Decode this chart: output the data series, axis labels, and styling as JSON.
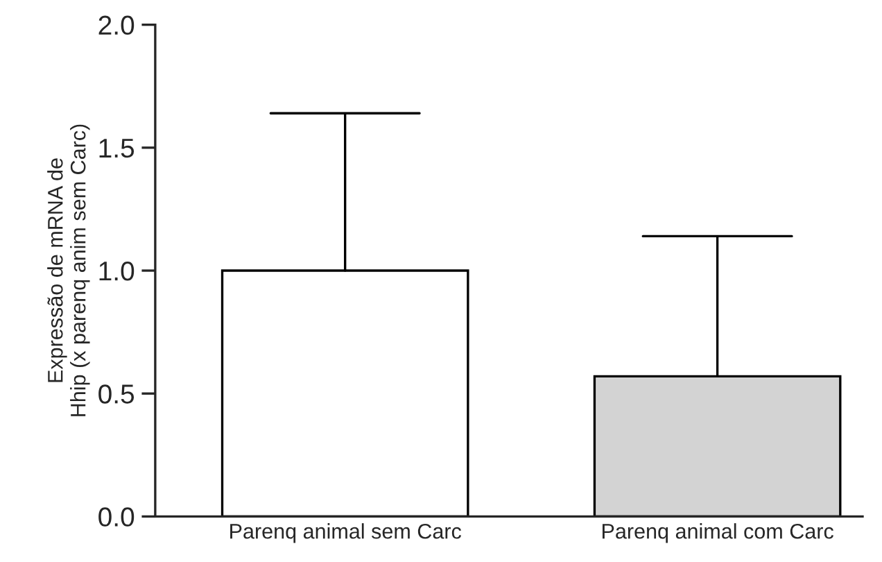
{
  "chart_data": {
    "type": "bar",
    "ylabel": "Expressão de mRNA de\nHhip (x parenq anim sem Carc)",
    "categories": [
      "Parenq animal sem Carc",
      "Parenq animal com Carc"
    ],
    "values": [
      1.0,
      0.57
    ],
    "colors": [
      "#ffffff",
      "#d3d3d3"
    ],
    "errors": [
      [
        1.0,
        1.64
      ],
      [
        0.57,
        1.14
      ]
    ],
    "ylim": [
      0,
      2.0
    ],
    "yticks": [
      {
        "value": 0,
        "label": "0.0"
      },
      {
        "value": 0.5,
        "label": "0.5"
      },
      {
        "value": 1.0,
        "label": "1.0"
      },
      {
        "value": 1.5,
        "label": "1.5"
      },
      {
        "value": 2.0,
        "label": "2.0"
      }
    ],
    "grid": false,
    "legend": false
  }
}
